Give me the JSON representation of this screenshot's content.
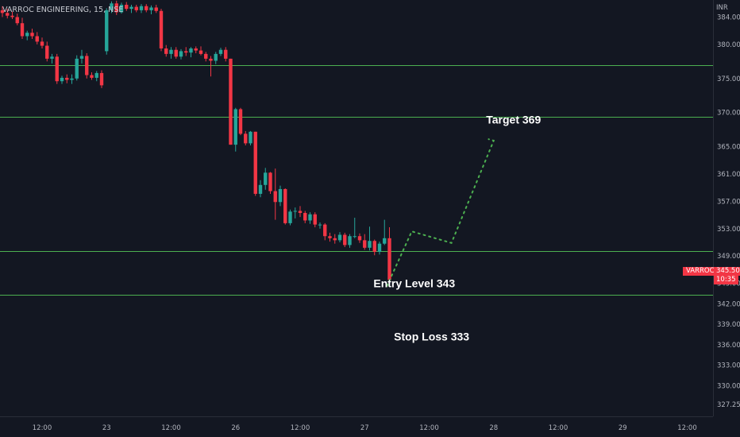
{
  "header": {
    "symbol_title": "VARROC ENGINEERING, 15, NSE"
  },
  "price_scale": {
    "currency": "INR"
  },
  "last_price": {
    "symbol": "VARROC",
    "price": "345.50",
    "countdown": "10:35"
  },
  "colors": {
    "background": "#131722",
    "up": "#26a69a",
    "down": "#f23645",
    "level_line": "#4caf50",
    "projection": "#4caf50",
    "label": "#ffffff"
  },
  "chart_data": {
    "type": "candlestick",
    "symbol": "VARROC ENGINEERING",
    "interval": "15",
    "exchange": "NSE",
    "y_axis": {
      "range": [
        325.5,
        386.5
      ],
      "ticks": [
        "384.00",
        "380.00",
        "375.00",
        "370.00",
        "365.00",
        "361.00",
        "357.00",
        "353.00",
        "349.00",
        "345.00",
        "342.00",
        "339.00",
        "336.00",
        "333.00",
        "330.00",
        "327.25"
      ],
      "tick_values": [
        384,
        380,
        375,
        370,
        365,
        361,
        357,
        353,
        349,
        345,
        342,
        339,
        336,
        333,
        330,
        327.25
      ]
    },
    "x_axis": {
      "ticks": [
        "12:00",
        "23",
        "12:00",
        "26",
        "12:00",
        "27",
        "12:00",
        "28",
        "12:00",
        "29",
        "12:00"
      ],
      "tick_candle_index": [
        8,
        21,
        34,
        47,
        60,
        73,
        86,
        99,
        112,
        125,
        138
      ]
    },
    "candles": [
      [
        385.0,
        385.6,
        384.0,
        384.6
      ],
      [
        384.6,
        385.2,
        383.8,
        384.2
      ],
      [
        384.2,
        384.8,
        383.7,
        384.0
      ],
      [
        384.0,
        384.5,
        382.8,
        383.1
      ],
      [
        383.1,
        383.9,
        380.8,
        381.2
      ],
      [
        381.2,
        382.0,
        380.6,
        381.7
      ],
      [
        381.7,
        382.3,
        380.8,
        381.2
      ],
      [
        381.2,
        381.8,
        380.0,
        380.4
      ],
      [
        380.4,
        381.0,
        379.4,
        379.8
      ],
      [
        379.8,
        380.4,
        377.5,
        377.9
      ],
      [
        377.9,
        378.6,
        377.2,
        378.2
      ],
      [
        378.2,
        378.6,
        374.2,
        374.6
      ],
      [
        374.6,
        375.4,
        374.2,
        375.1
      ],
      [
        375.1,
        375.6,
        374.3,
        374.8
      ],
      [
        374.8,
        375.6,
        374.2,
        375.0
      ],
      [
        375.0,
        378.4,
        374.7,
        377.9
      ],
      [
        377.9,
        379.2,
        377.2,
        378.3
      ],
      [
        378.3,
        378.7,
        375.0,
        375.5
      ],
      [
        375.5,
        375.9,
        374.8,
        375.1
      ],
      [
        375.1,
        376.1,
        374.6,
        375.8
      ],
      [
        375.8,
        376.2,
        373.6,
        374.0
      ],
      [
        379.0,
        385.3,
        378.5,
        385.0
      ],
      [
        385.0,
        386.3,
        384.6,
        386.0
      ],
      [
        386.0,
        386.4,
        384.3,
        384.7
      ],
      [
        384.7,
        386.1,
        384.5,
        385.8
      ],
      [
        385.8,
        386.2,
        384.9,
        385.2
      ],
      [
        385.2,
        385.8,
        384.6,
        385.5
      ],
      [
        385.5,
        385.8,
        384.7,
        385.0
      ],
      [
        385.0,
        385.9,
        384.6,
        385.6
      ],
      [
        385.6,
        385.9,
        384.7,
        385.0
      ],
      [
        385.0,
        385.7,
        384.4,
        385.4
      ],
      [
        385.4,
        385.8,
        384.6,
        384.9
      ],
      [
        384.9,
        385.2,
        379.0,
        379.4
      ],
      [
        379.4,
        379.9,
        378.2,
        378.6
      ],
      [
        378.6,
        379.6,
        377.9,
        379.2
      ],
      [
        379.2,
        379.6,
        377.9,
        378.2
      ],
      [
        378.2,
        379.3,
        377.8,
        379.0
      ],
      [
        379.0,
        379.6,
        378.3,
        378.8
      ],
      [
        378.8,
        379.6,
        378.1,
        379.4
      ],
      [
        379.4,
        379.7,
        378.7,
        379.1
      ],
      [
        379.1,
        379.7,
        378.4,
        378.6
      ],
      [
        378.6,
        378.9,
        377.5,
        377.9
      ],
      [
        377.9,
        378.3,
        375.3,
        377.6
      ],
      [
        377.6,
        378.9,
        377.1,
        378.6
      ],
      [
        378.6,
        379.5,
        378.3,
        379.2
      ],
      [
        379.2,
        379.6,
        377.5,
        377.9
      ],
      [
        377.9,
        377.9,
        365.3,
        365.3
      ],
      [
        365.3,
        370.7,
        364.3,
        370.5
      ],
      [
        370.5,
        370.7,
        366.7,
        366.9
      ],
      [
        366.9,
        367.3,
        365.2,
        365.5
      ],
      [
        365.5,
        367.3,
        365.2,
        367.2
      ],
      [
        367.2,
        367.2,
        357.8,
        358.1
      ],
      [
        358.1,
        360.1,
        357.6,
        359.4
      ],
      [
        359.4,
        361.9,
        358.7,
        361.2
      ],
      [
        361.2,
        361.3,
        358.1,
        358.5
      ],
      [
        358.5,
        361.8,
        354.3,
        356.9
      ],
      [
        356.9,
        359.3,
        356.3,
        358.8
      ],
      [
        358.8,
        358.9,
        353.6,
        353.8
      ],
      [
        353.8,
        355.8,
        353.5,
        355.5
      ],
      [
        355.5,
        356.1,
        354.5,
        355.6
      ],
      [
        355.6,
        356.3,
        354.7,
        355.3
      ],
      [
        355.3,
        355.6,
        353.8,
        354.2
      ],
      [
        354.2,
        355.4,
        353.7,
        355.1
      ],
      [
        355.1,
        355.4,
        353.2,
        353.6
      ],
      [
        353.6,
        353.9,
        353.0,
        353.6
      ],
      [
        353.6,
        353.8,
        351.3,
        351.9
      ],
      [
        351.9,
        352.4,
        351.1,
        351.6
      ],
      [
        351.6,
        352.2,
        350.8,
        351.3
      ],
      [
        351.3,
        352.5,
        351.0,
        352.1
      ],
      [
        352.1,
        352.4,
        350.3,
        350.6
      ],
      [
        350.6,
        352.2,
        350.2,
        351.9
      ],
      [
        351.9,
        354.6,
        351.6,
        351.9
      ],
      [
        351.9,
        352.3,
        350.9,
        351.3
      ],
      [
        351.3,
        352.2,
        349.9,
        350.2
      ],
      [
        350.2,
        353.3,
        349.8,
        351.2
      ],
      [
        351.2,
        351.4,
        349.1,
        349.6
      ],
      [
        349.6,
        351.1,
        349.2,
        350.8
      ],
      [
        350.8,
        354.3,
        350.6,
        351.6
      ],
      [
        351.6,
        353.2,
        345.2,
        345.5
      ]
    ],
    "horizontal_lines": [
      377.0,
      369.4,
      349.7,
      343.3
    ],
    "projection_path": [
      {
        "candle": 77.5,
        "price": 344.6
      },
      {
        "candle": 82.5,
        "price": 352.6
      },
      {
        "candle": 90.5,
        "price": 350.9
      },
      {
        "candle": 99.0,
        "price": 365.9
      },
      {
        "candle": 98.0,
        "price": 366.1
      }
    ],
    "annotations": [
      {
        "text": "Target 369",
        "candle": 103.0,
        "price": 368.4
      },
      {
        "text": "Entry Level 343",
        "candle": 83.0,
        "price": 344.4
      },
      {
        "text": "Stop Loss 333",
        "candle": 86.5,
        "price": 336.6
      }
    ]
  }
}
